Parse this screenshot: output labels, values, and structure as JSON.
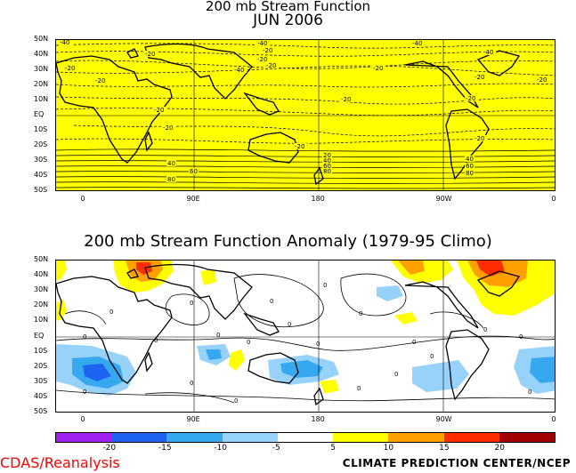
{
  "titles": {
    "main_line1": "200 mb Stream Function",
    "main_line2": "JUN 2006",
    "anomaly": "200 mb Stream Function Anomaly (1979-95 Climo)"
  },
  "lat_labels": [
    "50N",
    "40N",
    "30N",
    "20N",
    "10N",
    "EQ",
    "10S",
    "20S",
    "30S",
    "40S",
    "50S"
  ],
  "lon_labels": [
    "0",
    "90E",
    "180",
    "90W",
    "0"
  ],
  "contour_labels_top": [
    "-40",
    "-40",
    "-40",
    "-40",
    "-20",
    "-20",
    "-20",
    "-20",
    "-20",
    "-20",
    "-20",
    "-20",
    "-40",
    "-20",
    "-20",
    "-20",
    "-20",
    "-20",
    "-20",
    "-20",
    "20",
    "40",
    "60",
    "80",
    "40",
    "60",
    "80",
    "40",
    "60",
    "80"
  ],
  "contour_labels_bottom": [
    "0",
    "0",
    "0",
    "0",
    "0",
    "0",
    "0",
    "0",
    "0",
    "0",
    "0",
    "0",
    "0",
    "0",
    "0",
    "0",
    "0",
    "0",
    "0",
    "0",
    "0"
  ],
  "colorbar": {
    "colors": [
      "#a020f0",
      "#1e64f0",
      "#36a8f0",
      "#96d2fa",
      "#ffffff",
      "#ffff00",
      "#ffa000",
      "#ff2d00",
      "#a00000"
    ],
    "labels": [
      "-20",
      "-15",
      "-10",
      "-5",
      "5",
      "10",
      "15",
      "20"
    ]
  },
  "footer": {
    "source": "CDAS/Reanalysis",
    "center": "CLIMATE PREDICTION CENTER/NCEP"
  }
}
